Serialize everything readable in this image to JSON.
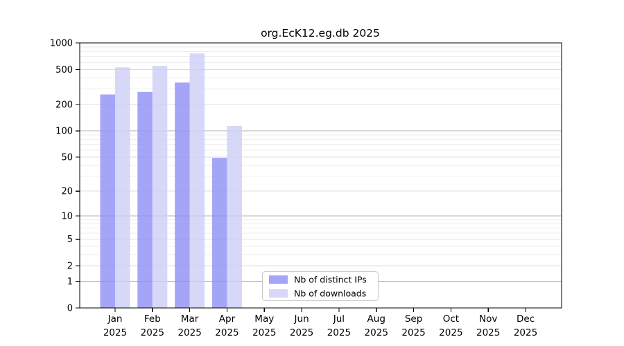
{
  "title": "org.EcK12.eg.db 2025",
  "chart_data": {
    "type": "bar",
    "title": "org.EcK12.eg.db 2025",
    "scale": "log(v+1), 0 at baseline",
    "ylim": [
      0,
      1000
    ],
    "grid": "horizontal",
    "legend_position": "bottom-center-inside",
    "year": "2025",
    "categories": [
      "Jan",
      "Feb",
      "Mar",
      "Apr",
      "May",
      "Jun",
      "Jul",
      "Aug",
      "Sep",
      "Oct",
      "Nov",
      "Dec"
    ],
    "y_ticks": [
      1000,
      500,
      200,
      100,
      50,
      20,
      10,
      5,
      2,
      1,
      0
    ],
    "series": [
      {
        "name": "Nb of distinct IPs",
        "color": "#8f8ff5",
        "alpha": 0.8,
        "values": [
          260,
          278,
          355,
          49,
          null,
          null,
          null,
          null,
          null,
          null,
          null,
          null
        ]
      },
      {
        "name": "Nb of downloads",
        "color": "#cdcdf5",
        "alpha": 0.8,
        "values": [
          528,
          550,
          758,
          114,
          null,
          null,
          null,
          null,
          null,
          null,
          null,
          null
        ]
      }
    ],
    "colors": {
      "grid_major": "#b2b2b2",
      "grid_mid": "#dcdcdc",
      "grid_minor": "#eeeeee",
      "spine": "#000000"
    }
  }
}
